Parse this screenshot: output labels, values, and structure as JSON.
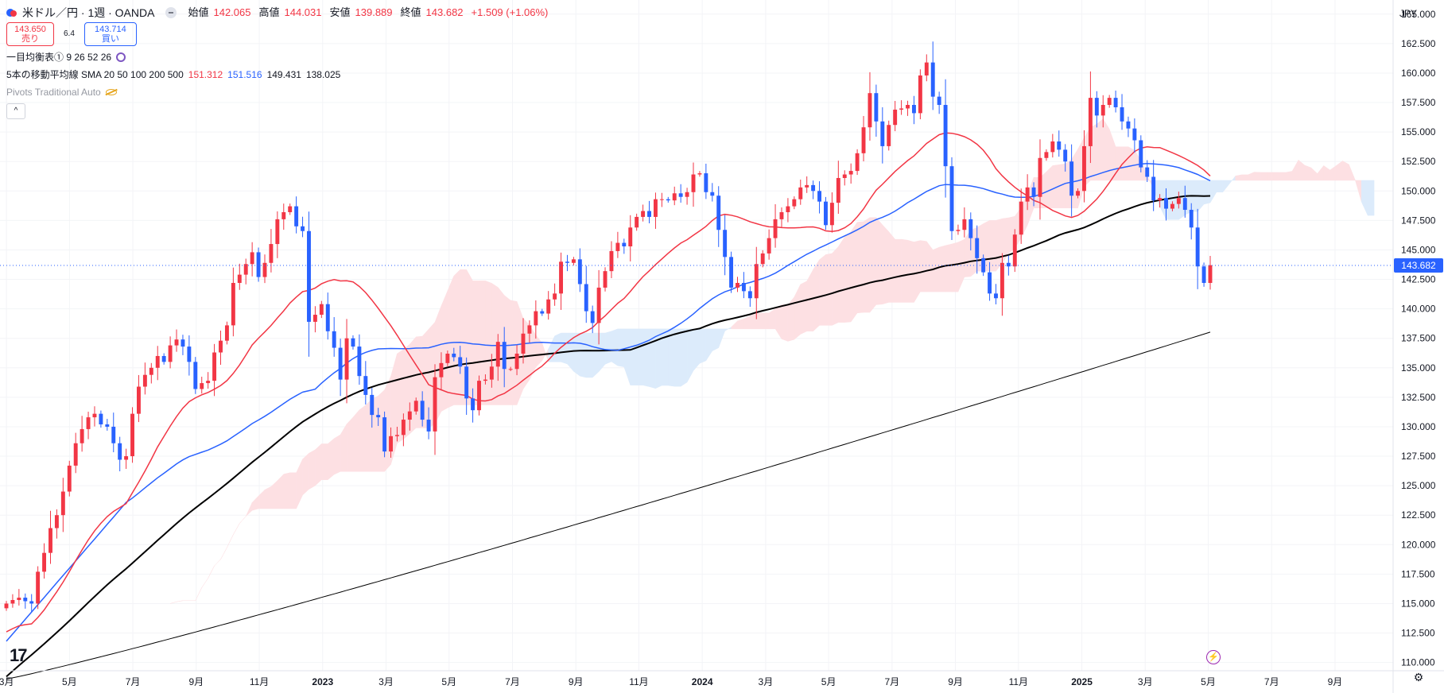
{
  "legend": {
    "symbol_title": "米ドル／円 · 1週 · OANDA",
    "ohlc": [
      {
        "label": "始値",
        "value": "142.065"
      },
      {
        "label": "高値",
        "value": "144.031"
      },
      {
        "label": "安値",
        "value": "139.889"
      },
      {
        "label": "終値",
        "value": "143.682"
      }
    ],
    "change": "+1.509 (+1.06%)",
    "sell_price": "143.650",
    "sell_label": "売り",
    "spread": "6.4",
    "buy_price": "143.714",
    "buy_label": "買い",
    "ichimoku": "一目均衡表① 9 26 52 26",
    "sma_label": "5本の移動平均線 SMA 20 50 100 200 500",
    "sma_values": [
      "151.312",
      "151.516",
      "149.431",
      "138.025"
    ],
    "pivots": "Pivots Traditional Auto",
    "collapse_glyph": "^"
  },
  "currency": "JPY",
  "last_price_label": "143.682",
  "footer": {
    "logo": "17",
    "lightning_glyph": "⚡",
    "gear_glyph": "⚙"
  },
  "colors": {
    "up": "#f23645",
    "down": "#2962ff",
    "sma20": "#f23645",
    "sma50": "#2962ff",
    "sma100": "#000000",
    "sma200": "#000000",
    "cloud_bull": "#fde0e3",
    "cloud_bear": "#dcebfb"
  },
  "chart_data": {
    "type": "candlestick",
    "timeframe": "1週",
    "y_ticks": [
      110,
      112.5,
      115,
      117.5,
      120,
      122.5,
      125,
      127.5,
      130,
      132.5,
      135,
      137.5,
      140,
      142.5,
      145,
      147.5,
      150,
      152.5,
      155,
      157.5,
      160,
      162.5,
      165
    ],
    "y_tick_labels": [
      "110.000",
      "112.500",
      "115.000",
      "117.500",
      "120.000",
      "122.500",
      "125.000",
      "127.500",
      "130.000",
      "132.500",
      "135.000",
      "137.500",
      "140.000",
      "142.500",
      "145.000",
      "147.500",
      "150.000",
      "152.500",
      "155.000",
      "157.500",
      "160.000",
      "162.500",
      "165.000"
    ],
    "ylim": [
      109.3,
      166.2
    ],
    "x_start": 2022.15,
    "x_end": 2025.82,
    "x_ticks": [
      {
        "t": 2022.167,
        "label": "3月"
      },
      {
        "t": 2022.333,
        "label": "5月"
      },
      {
        "t": 2022.5,
        "label": "7月"
      },
      {
        "t": 2022.667,
        "label": "9月"
      },
      {
        "t": 2022.833,
        "label": "11月"
      },
      {
        "t": 2023.0,
        "label": "2023"
      },
      {
        "t": 2023.167,
        "label": "3月"
      },
      {
        "t": 2023.333,
        "label": "5月"
      },
      {
        "t": 2023.5,
        "label": "7月"
      },
      {
        "t": 2023.667,
        "label": "9月"
      },
      {
        "t": 2023.833,
        "label": "11月"
      },
      {
        "t": 2024.0,
        "label": "2024"
      },
      {
        "t": 2024.167,
        "label": "3月"
      },
      {
        "t": 2024.333,
        "label": "5月"
      },
      {
        "t": 2024.5,
        "label": "7月"
      },
      {
        "t": 2024.667,
        "label": "9月"
      },
      {
        "t": 2024.833,
        "label": "11月"
      },
      {
        "t": 2025.0,
        "label": "2025"
      },
      {
        "t": 2025.167,
        "label": "3月"
      },
      {
        "t": 2025.333,
        "label": "5月"
      },
      {
        "t": 2025.5,
        "label": "7月"
      },
      {
        "t": 2025.667,
        "label": "9月"
      }
    ],
    "closes": [
      115.0,
      115.3,
      115.5,
      115.2,
      115.0,
      117.7,
      119.3,
      121.4,
      122.5,
      124.5,
      126.7,
      128.6,
      129.8,
      130.8,
      131.1,
      130.2,
      130.0,
      128.6,
      127.2,
      127.5,
      131.1,
      133.4,
      134.4,
      135.0,
      136.0,
      135.5,
      136.9,
      137.4,
      136.8,
      135.5,
      133.2,
      133.7,
      133.9,
      136.3,
      137.3,
      138.6,
      142.2,
      142.9,
      143.8,
      144.8,
      142.7,
      143.9,
      145.5,
      147.6,
      148.2,
      148.7,
      147.0,
      146.6,
      138.9,
      139.5,
      140.4,
      138.1,
      136.7,
      134.0,
      137.5,
      136.8,
      134.3,
      132.7,
      131.0,
      130.8,
      127.9,
      129.2,
      129.3,
      130.6,
      131.3,
      132.2,
      130.6,
      129.6,
      134.2,
      135.4,
      136.2,
      135.9,
      135.1,
      132.4,
      131.4,
      133.9,
      134.0,
      135.1,
      137.2,
      134.9,
      134.9,
      136.2,
      137.9,
      138.6,
      139.8,
      139.6,
      140.8,
      141.3,
      144.0,
      143.9,
      144.2,
      142.1,
      139.8,
      138.8,
      141.8,
      143.2,
      144.9,
      145.6,
      145.3,
      146.9,
      147.8,
      148.3,
      147.8,
      149.3,
      149.3,
      149.2,
      149.8,
      149.5,
      149.9,
      151.4,
      151.5,
      149.9,
      149.6,
      146.7,
      144.4,
      141.8,
      142.2,
      141.5,
      140.9,
      143.8,
      144.7,
      146.0,
      147.6,
      148.2,
      148.7,
      149.3,
      150.3,
      150.5,
      150.0,
      149.1,
      147.1,
      149.0,
      151.1,
      151.4,
      151.7,
      153.2,
      155.4,
      158.3,
      155.9,
      153.8,
      155.6,
      156.9,
      157.0,
      157.3,
      156.6,
      159.8,
      160.9,
      158.0,
      157.3,
      152.1,
      146.6,
      146.7,
      147.6,
      146.0,
      144.3,
      143.1,
      141.3,
      140.9,
      143.9,
      143.6,
      146.3,
      149.1,
      150.3,
      149.5,
      152.8,
      153.3,
      154.2,
      153.5,
      152.5,
      149.6,
      150.0,
      153.8,
      157.9,
      156.4,
      157.3,
      157.9,
      157.1,
      155.9,
      155.3,
      154.3,
      152.0,
      151.2,
      149.2,
      149.4,
      148.5,
      148.9,
      149.4,
      148.4,
      146.9,
      143.6,
      142.2,
      143.7
    ],
    "sma_periods": [
      20,
      50,
      100,
      200,
      500
    ],
    "sma_last": [
      151.312,
      151.516,
      149.431,
      138.025
    ],
    "last_close": 143.682
  }
}
